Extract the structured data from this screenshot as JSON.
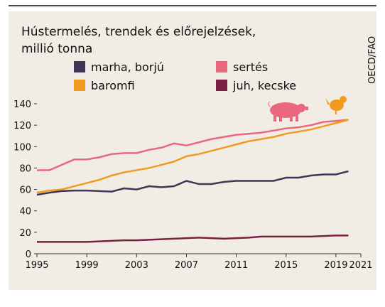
{
  "chart_data": {
    "type": "line",
    "title": "Hústermelés, trendek és előrejelzések, millió tonna",
    "title_lines": [
      "Hústermelés, trendek és előrejelzések,",
      "millió tonna"
    ],
    "source": "OECD/FAO",
    "x": [
      1995,
      1996,
      1997,
      1998,
      1999,
      2000,
      2001,
      2002,
      2003,
      2004,
      2005,
      2006,
      2007,
      2008,
      2009,
      2010,
      2011,
      2012,
      2013,
      2014,
      2015,
      2016,
      2017,
      2018,
      2019,
      2020
    ],
    "series": [
      {
        "name": "marha, borjú",
        "color": "#3f3657",
        "values": [
          55,
          57,
          58.5,
          59,
          59,
          58.5,
          58,
          61,
          60,
          63,
          62,
          63,
          68,
          65,
          65,
          67,
          68,
          68,
          68,
          68,
          71,
          71,
          73,
          74,
          74,
          77
        ]
      },
      {
        "name": "sertés",
        "color": "#e9687f",
        "values": [
          78,
          78,
          83,
          88,
          88,
          90,
          93,
          94,
          94,
          97,
          99,
          103,
          101,
          104,
          107,
          109,
          111,
          112,
          113,
          115,
          117,
          118,
          120,
          123,
          124,
          125
        ]
      },
      {
        "name": "baromfi",
        "color": "#f29a1f",
        "values": [
          57,
          59,
          60,
          63,
          66,
          69,
          73,
          76,
          78,
          80,
          83,
          86,
          91,
          93,
          96,
          99,
          102,
          105,
          107,
          109,
          112,
          114,
          116,
          119,
          122,
          125
        ]
      },
      {
        "name": "juh, kecske",
        "color": "#7b1f42",
        "values": [
          11,
          11,
          11,
          11,
          11,
          11.5,
          12,
          12.5,
          12.5,
          13,
          13.5,
          14,
          14.5,
          15,
          14.5,
          14,
          14.5,
          15,
          16,
          16,
          16,
          16,
          16,
          16.5,
          17,
          17
        ]
      }
    ],
    "xlim": [
      1995,
      2021
    ],
    "xticks": [
      1995,
      1999,
      2003,
      2007,
      2011,
      2015,
      2019,
      2021
    ],
    "ylim": [
      0,
      140
    ],
    "yticks": [
      0,
      20,
      40,
      60,
      80,
      100,
      120,
      140
    ]
  }
}
